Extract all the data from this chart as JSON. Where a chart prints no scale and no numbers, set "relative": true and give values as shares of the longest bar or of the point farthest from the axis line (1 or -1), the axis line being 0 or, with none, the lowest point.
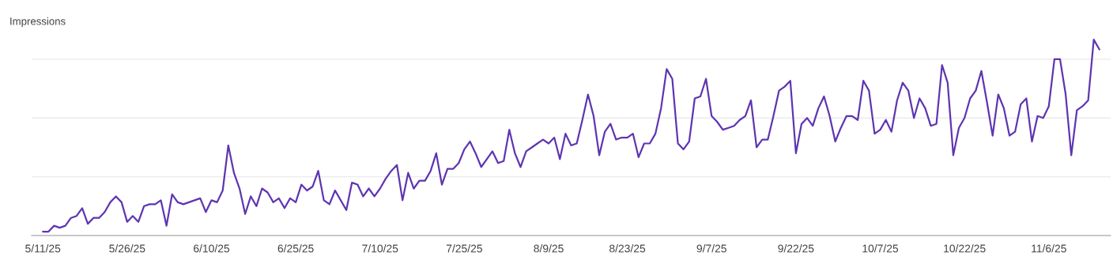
{
  "chart_data": {
    "type": "line",
    "ylabel": "Impressions",
    "relative": true,
    "grid": "y",
    "legend": false,
    "marker": "none",
    "line_style": "solid",
    "xlim": [
      "2025-05-09",
      "2025-11-17"
    ],
    "xticks": [
      {
        "value": "2025-05-11",
        "label": "5/11/25"
      },
      {
        "value": "2025-05-26",
        "label": "5/26/25"
      },
      {
        "value": "2025-06-10",
        "label": "6/10/25"
      },
      {
        "value": "2025-06-25",
        "label": "6/25/25"
      },
      {
        "value": "2025-07-10",
        "label": "7/10/25"
      },
      {
        "value": "2025-07-25",
        "label": "7/25/25"
      },
      {
        "value": "2025-08-09",
        "label": "8/9/25"
      },
      {
        "value": "2025-08-23",
        "label": "8/23/25"
      },
      {
        "value": "2025-09-07",
        "label": "9/7/25"
      },
      {
        "value": "2025-09-22",
        "label": "9/22/25"
      },
      {
        "value": "2025-10-07",
        "label": "10/7/25"
      },
      {
        "value": "2025-10-22",
        "label": "10/22/25"
      },
      {
        "value": "2025-11-06",
        "label": "11/6/25"
      }
    ],
    "x": [
      "2025-05-11",
      "2025-05-12",
      "2025-05-13",
      "2025-05-14",
      "2025-05-15",
      "2025-05-16",
      "2025-05-17",
      "2025-05-18",
      "2025-05-19",
      "2025-05-20",
      "2025-05-21",
      "2025-05-22",
      "2025-05-23",
      "2025-05-24",
      "2025-05-25",
      "2025-05-26",
      "2025-05-27",
      "2025-05-28",
      "2025-05-29",
      "2025-05-30",
      "2025-05-31",
      "2025-06-01",
      "2025-06-02",
      "2025-06-03",
      "2025-06-04",
      "2025-06-05",
      "2025-06-06",
      "2025-06-07",
      "2025-06-08",
      "2025-06-09",
      "2025-06-10",
      "2025-06-11",
      "2025-06-12",
      "2025-06-13",
      "2025-06-14",
      "2025-06-15",
      "2025-06-16",
      "2025-06-17",
      "2025-06-18",
      "2025-06-19",
      "2025-06-20",
      "2025-06-21",
      "2025-06-22",
      "2025-06-23",
      "2025-06-24",
      "2025-06-25",
      "2025-06-26",
      "2025-06-27",
      "2025-06-28",
      "2025-06-29",
      "2025-06-30",
      "2025-07-01",
      "2025-07-02",
      "2025-07-03",
      "2025-07-04",
      "2025-07-05",
      "2025-07-06",
      "2025-07-07",
      "2025-07-08",
      "2025-07-09",
      "2025-07-10",
      "2025-07-11",
      "2025-07-12",
      "2025-07-13",
      "2025-07-14",
      "2025-07-15",
      "2025-07-16",
      "2025-07-17",
      "2025-07-18",
      "2025-07-19",
      "2025-07-20",
      "2025-07-21",
      "2025-07-22",
      "2025-07-23",
      "2025-07-24",
      "2025-07-25",
      "2025-07-26",
      "2025-07-27",
      "2025-07-28",
      "2025-07-29",
      "2025-07-30",
      "2025-07-31",
      "2025-08-01",
      "2025-08-02",
      "2025-08-03",
      "2025-08-04",
      "2025-08-05",
      "2025-08-06",
      "2025-08-07",
      "2025-08-08",
      "2025-08-09",
      "2025-08-10",
      "2025-08-11",
      "2025-08-12",
      "2025-08-13",
      "2025-08-14",
      "2025-08-15",
      "2025-08-16",
      "2025-08-17",
      "2025-08-18",
      "2025-08-19",
      "2025-08-20",
      "2025-08-21",
      "2025-08-22",
      "2025-08-23",
      "2025-08-24",
      "2025-08-25",
      "2025-08-26",
      "2025-08-27",
      "2025-08-28",
      "2025-08-29",
      "2025-08-30",
      "2025-08-31",
      "2025-09-01",
      "2025-09-02",
      "2025-09-03",
      "2025-09-04",
      "2025-09-05",
      "2025-09-06",
      "2025-09-07",
      "2025-09-08",
      "2025-09-09",
      "2025-09-10",
      "2025-09-11",
      "2025-09-12",
      "2025-09-13",
      "2025-09-14",
      "2025-09-15",
      "2025-09-16",
      "2025-09-17",
      "2025-09-18",
      "2025-09-19",
      "2025-09-20",
      "2025-09-21",
      "2025-09-22",
      "2025-09-23",
      "2025-09-24",
      "2025-09-25",
      "2025-09-26",
      "2025-09-27",
      "2025-09-28",
      "2025-09-29",
      "2025-09-30",
      "2025-10-01",
      "2025-10-02",
      "2025-10-03",
      "2025-10-04",
      "2025-10-05",
      "2025-10-06",
      "2025-10-07",
      "2025-10-08",
      "2025-10-09",
      "2025-10-10",
      "2025-10-11",
      "2025-10-12",
      "2025-10-13",
      "2025-10-14",
      "2025-10-15",
      "2025-10-16",
      "2025-10-17",
      "2025-10-18",
      "2025-10-19",
      "2025-10-20",
      "2025-10-21",
      "2025-10-22",
      "2025-10-23",
      "2025-10-24",
      "2025-10-25",
      "2025-10-26",
      "2025-10-27",
      "2025-10-28",
      "2025-10-29",
      "2025-10-30",
      "2025-10-31",
      "2025-11-01",
      "2025-11-02",
      "2025-11-03",
      "2025-11-04",
      "2025-11-05",
      "2025-11-06",
      "2025-11-07",
      "2025-11-08",
      "2025-11-09",
      "2025-11-10",
      "2025-11-11",
      "2025-11-12",
      "2025-11-13",
      "2025-11-14",
      "2025-11-15"
    ],
    "series": [
      {
        "color": "#5e35b1",
        "values": [
          0.02,
          0.02,
          0.05,
          0.04,
          0.05,
          0.09,
          0.1,
          0.14,
          0.06,
          0.09,
          0.09,
          0.12,
          0.17,
          0.2,
          0.17,
          0.07,
          0.1,
          0.07,
          0.15,
          0.16,
          0.16,
          0.18,
          0.05,
          0.21,
          0.17,
          0.16,
          0.17,
          0.18,
          0.19,
          0.12,
          0.18,
          0.17,
          0.23,
          0.46,
          0.32,
          0.24,
          0.11,
          0.2,
          0.15,
          0.24,
          0.22,
          0.17,
          0.19,
          0.14,
          0.19,
          0.17,
          0.26,
          0.23,
          0.25,
          0.33,
          0.18,
          0.16,
          0.23,
          0.18,
          0.13,
          0.27,
          0.26,
          0.2,
          0.24,
          0.2,
          0.24,
          0.29,
          0.33,
          0.36,
          0.18,
          0.32,
          0.24,
          0.28,
          0.28,
          0.33,
          0.42,
          0.26,
          0.34,
          0.34,
          0.37,
          0.44,
          0.48,
          0.42,
          0.35,
          0.39,
          0.43,
          0.37,
          0.38,
          0.54,
          0.42,
          0.35,
          0.43,
          0.45,
          0.47,
          0.49,
          0.47,
          0.5,
          0.39,
          0.52,
          0.46,
          0.47,
          0.59,
          0.72,
          0.61,
          0.41,
          0.53,
          0.57,
          0.49,
          0.5,
          0.5,
          0.52,
          0.4,
          0.47,
          0.47,
          0.52,
          0.65,
          0.85,
          0.8,
          0.47,
          0.44,
          0.48,
          0.7,
          0.71,
          0.8,
          0.61,
          0.58,
          0.54,
          0.55,
          0.56,
          0.59,
          0.61,
          0.69,
          0.45,
          0.49,
          0.49,
          0.61,
          0.74,
          0.76,
          0.79,
          0.42,
          0.57,
          0.6,
          0.56,
          0.65,
          0.71,
          0.61,
          0.48,
          0.55,
          0.61,
          0.61,
          0.59,
          0.79,
          0.74,
          0.52,
          0.54,
          0.59,
          0.53,
          0.69,
          0.78,
          0.74,
          0.6,
          0.7,
          0.65,
          0.56,
          0.57,
          0.87,
          0.78,
          0.41,
          0.55,
          0.6,
          0.7,
          0.74,
          0.84,
          0.68,
          0.51,
          0.72,
          0.65,
          0.51,
          0.53,
          0.67,
          0.7,
          0.48,
          0.61,
          0.6,
          0.66,
          0.9,
          0.9,
          0.72,
          0.41,
          0.64,
          0.66,
          0.69,
          1,
          0.95
        ]
      }
    ]
  }
}
